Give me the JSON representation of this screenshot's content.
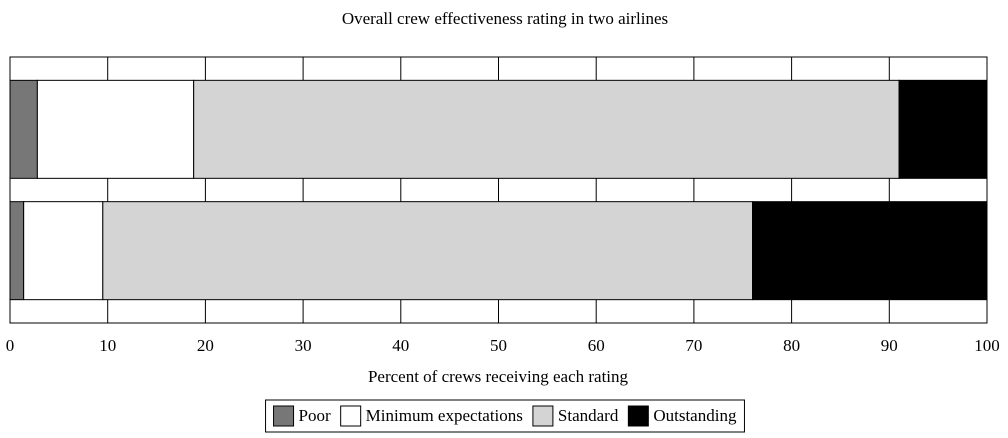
{
  "chart_data": {
    "type": "stacked_barh",
    "title": "Overall crew effectiveness rating in two airlines",
    "x_label": "Percent of crews receiving each rating",
    "categories": [
      null,
      null
    ],
    "series": [
      {
        "name": "Poor",
        "color": "#777777",
        "values": [
          2.8,
          1.4
        ]
      },
      {
        "name": "Minimum expectations",
        "color": "#ffffff",
        "values": [
          16.0,
          8.1
        ]
      },
      {
        "name": "Standard",
        "color": "#d4d4d4",
        "values": [
          72.2,
          66.5
        ]
      },
      {
        "name": "Outstanding",
        "color": "#000000",
        "values": [
          9.0,
          24.0
        ]
      }
    ],
    "xlim": [
      0,
      100
    ],
    "xticks": [
      0,
      10,
      20,
      30,
      40,
      50,
      60,
      70,
      80,
      90,
      100
    ],
    "grid": true,
    "legend": "bottom"
  }
}
